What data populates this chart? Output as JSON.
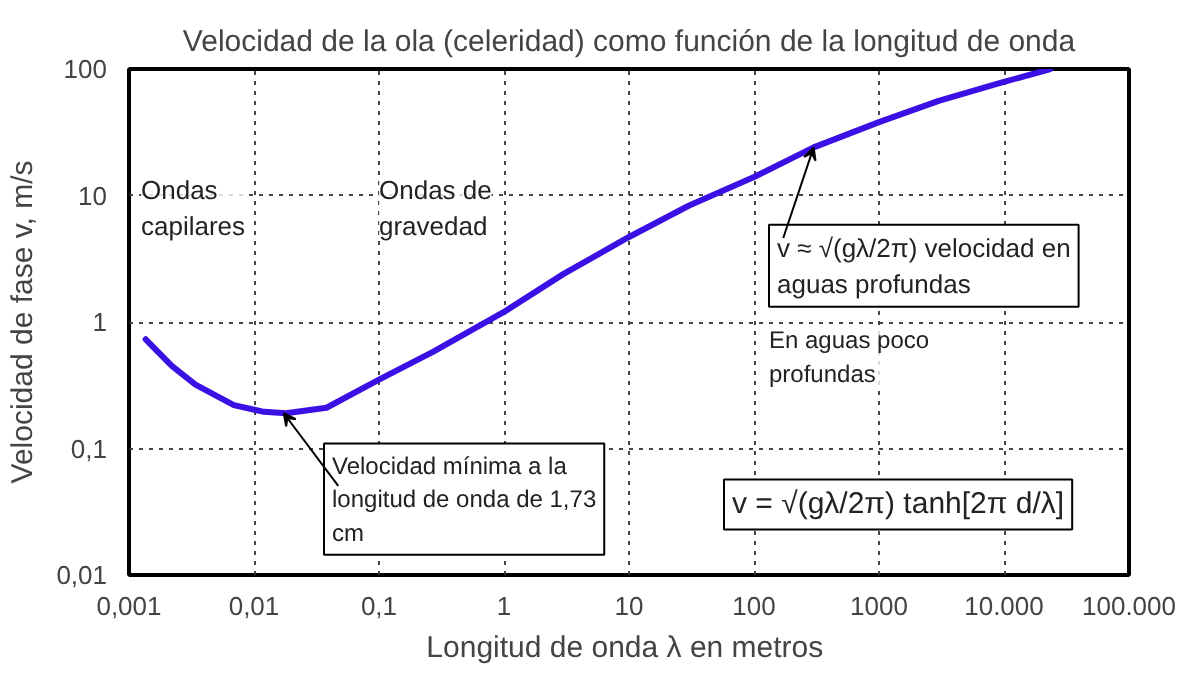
{
  "chart_data": {
    "type": "line",
    "title": "Velocidad de la ola (celeridad) como función de la longitud de onda",
    "xlabel": "Longitud de onda λ  en metros",
    "ylabel": "Velocidad de fase v, m/s",
    "log": "xy",
    "grid": true,
    "marker": "none",
    "line_style": "solid",
    "xlim": [
      0.001,
      100000
    ],
    "ylim": [
      0.01,
      100
    ],
    "xticks": [
      {
        "value": 0.001,
        "label": "0,001"
      },
      {
        "value": 0.01,
        "label": "0,01"
      },
      {
        "value": 0.1,
        "label": "0,1"
      },
      1,
      10,
      100,
      1000,
      {
        "value": 10000,
        "label": "10.000"
      },
      {
        "value": 100000,
        "label": "100.000"
      }
    ],
    "yticks": [
      {
        "value": 0.01,
        "label": "0,01"
      },
      {
        "value": 0.1,
        "label": "0,1"
      },
      1,
      10,
      100
    ],
    "series": [
      {
        "color": "#3a10e5",
        "x": [
          0.00136,
          0.0022,
          0.0034,
          0.0069,
          0.012,
          0.018,
          0.038,
          0.1,
          0.27,
          1,
          3,
          10,
          30,
          100,
          300,
          1000,
          3000,
          9500,
          23500
        ],
        "values": [
          0.73,
          0.45,
          0.32,
          0.22,
          0.195,
          0.19,
          0.21,
          0.35,
          0.58,
          1.2,
          2.4,
          4.7,
          8.3,
          14,
          24,
          38,
          56,
          78,
          100
        ]
      }
    ],
    "annotations": [
      "Ondas capilares",
      "Ondas de gravedad",
      {
        "text": "Velocidad mínima a la longitud de onda de 1,73 cm",
        "x": 0.0173,
        "y": 0.19
      },
      {
        "text": "v ≈ √(gλ/2π) velocidad en aguas profundas",
        "x": 300,
        "y": 24
      },
      "En aguas poco profundas",
      "v = √(gλ/2π) tanh[2π d/λ]"
    ]
  }
}
